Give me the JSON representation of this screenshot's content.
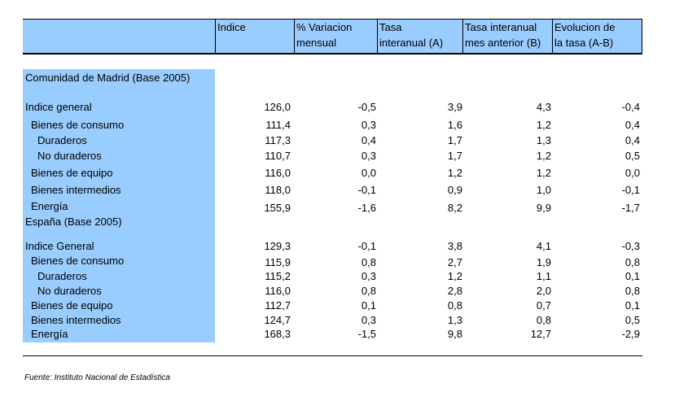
{
  "table": {
    "headers": {
      "indice": "Indice",
      "variacion": [
        "% Variacion",
        "mensual"
      ],
      "tasa_a": [
        "Tasa",
        "interanual (A)"
      ],
      "tasa_b": [
        "Tasa interanual",
        "mes anterior (B)"
      ],
      "evolucion": [
        "Evolucion de",
        "la tasa (A-B)"
      ]
    },
    "sections": [
      {
        "title": "Comunidad de Madrid (Base 2005)",
        "rows": [
          {
            "label": "Indice general",
            "indent": 0,
            "values": [
              "126,0",
              "-0,5",
              "3,9",
              "4,3",
              "-0,4"
            ]
          },
          {
            "label": "Bienes de consumo",
            "indent": 1,
            "values": [
              "111,4",
              "0,3",
              "1,6",
              "1,2",
              "0,4"
            ]
          },
          {
            "label": "Duraderos",
            "indent": 2,
            "values": [
              "117,3",
              "0,4",
              "1,7",
              "1,3",
              "0,4"
            ]
          },
          {
            "label": "No duraderos",
            "indent": 2,
            "values": [
              "110,7",
              "0,3",
              "1,7",
              "1,2",
              "0,5"
            ]
          },
          {
            "label": "Bienes de equipo",
            "indent": 1,
            "values": [
              "116,0",
              "0,0",
              "1,2",
              "1,2",
              "0,0"
            ]
          },
          {
            "label": "Bienes intermedios",
            "indent": 1,
            "values": [
              "118,0",
              "-0,1",
              "0,9",
              "1,0",
              "-0,1"
            ]
          },
          {
            "label": "Energía",
            "indent": 1,
            "values": [
              "155,9",
              "-1,6",
              "8,2",
              "9,9",
              "-1,7"
            ]
          }
        ]
      },
      {
        "title": "España (Base 2005)",
        "rows": [
          {
            "label": "Indice General",
            "indent": 0,
            "values": [
              "129,3",
              "-0,1",
              "3,8",
              "4,1",
              "-0,3"
            ]
          },
          {
            "label": "Bienes de consumo",
            "indent": 1,
            "values": [
              "115,9",
              "0,8",
              "2,7",
              "1,9",
              "0,8"
            ]
          },
          {
            "label": "Duraderos",
            "indent": 2,
            "values": [
              "115,2",
              "0,3",
              "1,2",
              "1,1",
              "0,1"
            ]
          },
          {
            "label": "No duraderos",
            "indent": 2,
            "values": [
              "116,0",
              "0,8",
              "2,8",
              "2,0",
              "0,8"
            ]
          },
          {
            "label": "Bienes de equipo",
            "indent": 1,
            "values": [
              "112,7",
              "0,1",
              "0,8",
              "0,7",
              "0,1"
            ]
          },
          {
            "label": "Bienes intermedios",
            "indent": 1,
            "values": [
              "124,7",
              "0,3",
              "1,3",
              "0,8",
              "0,5"
            ]
          },
          {
            "label": "Energía",
            "indent": 1,
            "values": [
              "168,3",
              "-1,5",
              "9,8",
              "12,7",
              "-2,9"
            ]
          }
        ]
      }
    ]
  },
  "source": "Fuente: Instituto Nacional de Estadística",
  "colors": {
    "header_fill": "#99ccff",
    "label_fill": "#99ccff"
  }
}
